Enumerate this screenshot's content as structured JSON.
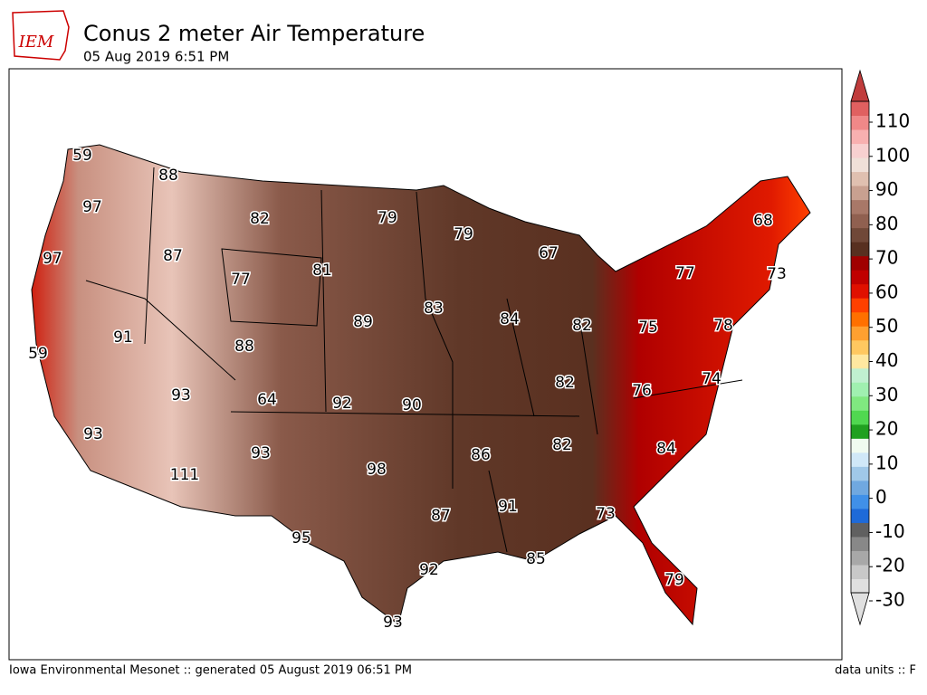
{
  "header": {
    "logo": "IEM",
    "title": "Conus 2 meter Air Temperature",
    "subtitle": "05 Aug 2019 6:51 PM"
  },
  "map_labels": [
    59,
    97,
    88,
    82,
    79,
    79,
    68,
    67,
    97,
    87,
    77,
    81,
    73,
    77,
    83,
    84,
    82,
    75,
    78,
    89,
    91,
    88,
    59,
    74,
    93,
    64,
    92,
    90,
    82,
    76,
    93,
    93,
    86,
    82,
    84,
    111,
    98,
    91,
    73,
    87,
    95,
    85,
    92,
    79,
    93
  ],
  "colorbar": {
    "ticks": [
      -30,
      -20,
      -10,
      0,
      10,
      20,
      30,
      40,
      50,
      60,
      70,
      80,
      90,
      100,
      110
    ],
    "colors": [
      "#e0e0e0",
      "#c8c8c8",
      "#a8a8a8",
      "#888888",
      "#606060",
      "#1e6ad8",
      "#4090e8",
      "#70a8e0",
      "#a0c8e8",
      "#d0e8f8",
      "#f0fbf0",
      "#20a020",
      "#50d850",
      "#80e880",
      "#a0f0b0",
      "#c0f0d0",
      "#ffe8a0",
      "#ffc860",
      "#ffa030",
      "#ff7000",
      "#ff4000",
      "#e01000",
      "#c00000",
      "#a00000",
      "#583020",
      "#704838",
      "#906050",
      "#a87868",
      "#c8a090",
      "#e0c0b0",
      "#f0e0d8",
      "#f8d0d0",
      "#f8b0b0",
      "#f08888",
      "#e06060"
    ]
  },
  "footer": {
    "left": "Iowa Environmental Mesonet :: generated 05 August 2019 06:51 PM",
    "right": "data units :: F"
  }
}
